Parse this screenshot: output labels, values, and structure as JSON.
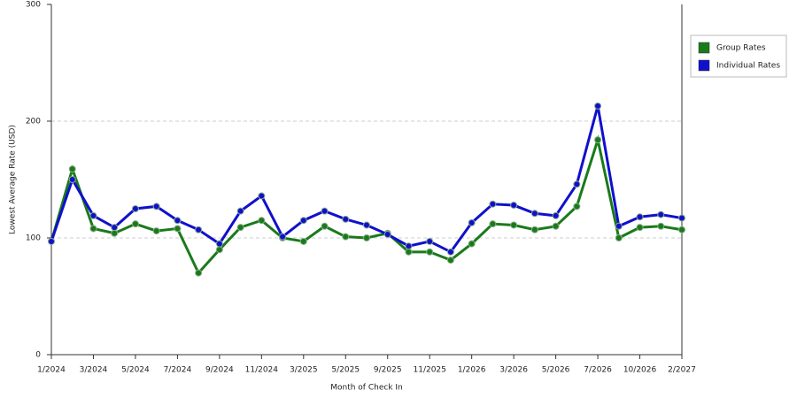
{
  "chart_data": {
    "type": "line",
    "x_label": "Month of Check In",
    "y_label": "Lowest Average Rate (USD)",
    "categories": [
      "1/2024",
      null,
      "3/2024",
      null,
      "5/2024",
      null,
      "7/2024",
      null,
      "9/2024",
      null,
      "11/2024",
      null,
      "3/2025",
      null,
      "5/2025",
      null,
      "9/2025",
      null,
      "11/2025",
      null,
      "1/2026",
      null,
      "3/2026",
      null,
      "5/2026",
      null,
      "7/2026",
      null,
      "10/2026",
      null,
      "2/2027"
    ],
    "series": [
      {
        "name": "Group Rates",
        "color": "#1a7a1a",
        "values": [
          97,
          159,
          108,
          104,
          112,
          106,
          108,
          70,
          90,
          109,
          115,
          100,
          97,
          110,
          101,
          100,
          104,
          88,
          88,
          81,
          95,
          112,
          111,
          107,
          110,
          127,
          184,
          100,
          109,
          110,
          107
        ]
      },
      {
        "name": "Individual Rates",
        "color": "#1010cc",
        "values": [
          97,
          150,
          119,
          109,
          125,
          127,
          115,
          107,
          95,
          123,
          136,
          101,
          115,
          123,
          116,
          111,
          103,
          93,
          97,
          88,
          113,
          129,
          128,
          121,
          119,
          146,
          213,
          110,
          118,
          120,
          117
        ]
      }
    ],
    "ylim": [
      0,
      300
    ],
    "yticks": [
      0,
      100,
      200,
      300
    ],
    "grid": true,
    "legend": "right"
  }
}
